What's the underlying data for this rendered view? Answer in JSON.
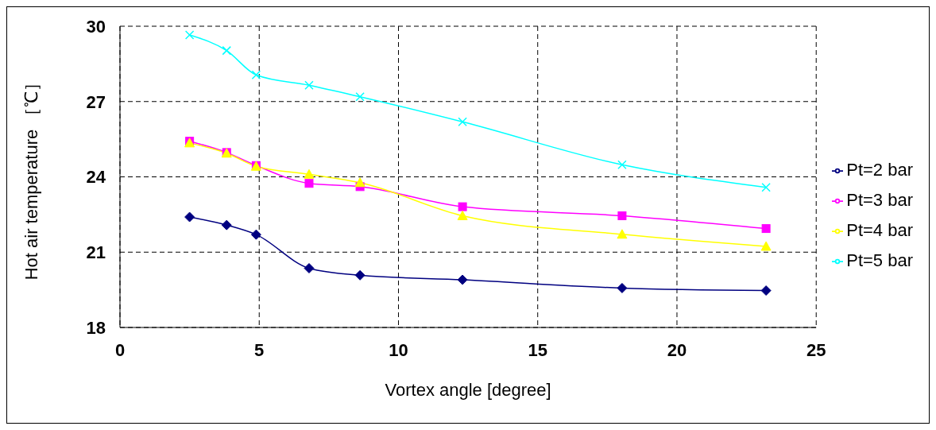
{
  "chart_data": {
    "type": "line",
    "xlabel": "Vortex angle [degree]",
    "ylabel": "Hot air temperature ［℃］",
    "xlim": [
      0,
      25
    ],
    "xticks": [
      0,
      5,
      10,
      15,
      20,
      25
    ],
    "ylim": [
      18,
      30
    ],
    "yticks": [
      18,
      21,
      24,
      27,
      30
    ],
    "grid": true,
    "legend": "right",
    "line_style": "solid",
    "x": [
      2.5,
      3.83,
      4.89,
      6.79,
      8.62,
      12.3,
      18.03,
      23.2
    ],
    "series": [
      {
        "name": "Pt=2 bar",
        "color": "#000080",
        "marker": "diamond",
        "values": [
          22.4,
          22.08,
          21.7,
          20.36,
          20.08,
          19.9,
          19.57,
          19.47
        ]
      },
      {
        "name": "Pt=3 bar",
        "color": "#ff00ff",
        "marker": "square",
        "values": [
          25.42,
          24.97,
          24.45,
          23.74,
          23.61,
          22.81,
          22.45,
          21.94
        ]
      },
      {
        "name": "Pt=4 bar",
        "color": "#ffff00",
        "marker": "triangle",
        "values": [
          25.35,
          24.94,
          24.42,
          24.1,
          23.77,
          22.45,
          21.71,
          21.23
        ]
      },
      {
        "name": "Pt=5 bar",
        "color": "#00ffff",
        "marker": "cross",
        "values": [
          29.65,
          29.03,
          28.06,
          27.65,
          27.19,
          26.19,
          24.48,
          23.58
        ]
      }
    ]
  }
}
